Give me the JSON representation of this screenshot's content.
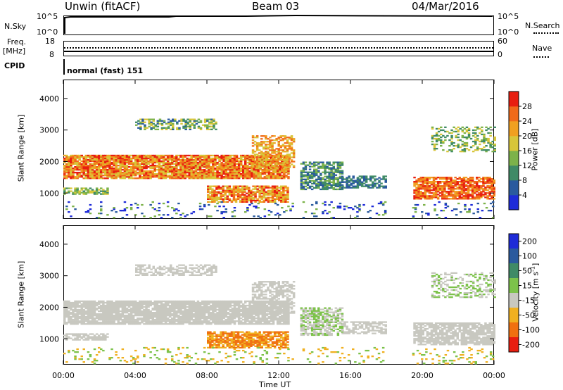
{
  "header": {
    "station": "Unwin (fitACF)",
    "beam": "Beam 03",
    "date": "04/Mar/2016"
  },
  "params": {
    "nsky_label": "N.Sky",
    "nsky_ticks": [
      "10^5",
      "10^0"
    ],
    "nsearch_label": "N.Search",
    "freq_label": "Freq.",
    "freq_unit": "[MHz]",
    "freq_ticks": [
      "18",
      "8"
    ],
    "nave_ticks": [
      "60",
      "0"
    ],
    "nave_label": "Nave",
    "cpid_label": "CPID",
    "cpid_value": "normal (fast) 151"
  },
  "chart_data": [
    {
      "type": "heatmap",
      "title": "",
      "ylabel": "Slant Range [km]",
      "xlabel": "",
      "ylim": [
        180,
        4600
      ],
      "y_ticks": [
        "1000",
        "2000",
        "3000",
        "4000"
      ],
      "colorbar_label": "Power [dB]",
      "colorbar_ticks": [
        "4",
        "8",
        "12",
        "16",
        "20",
        "24",
        "28"
      ],
      "colors": [
        "#1e2bd8",
        "#2a5a9e",
        "#3f8a66",
        "#7cb24a",
        "#d8c63a",
        "#f0a020",
        "#f06a1a",
        "#e81e10"
      ]
    },
    {
      "type": "heatmap",
      "title": "",
      "ylabel": "Slant Range [km]",
      "xlabel": "Time UT",
      "ylim": [
        180,
        4600
      ],
      "y_ticks": [
        "1000",
        "2000",
        "3000",
        "4000"
      ],
      "x_ticks": [
        "00:00",
        "04:00",
        "08:00",
        "12:00",
        "16:00",
        "20:00",
        "00:00"
      ],
      "colorbar_label": "Velocity [m s",
      "colorbar_sup": "-1",
      "colorbar_ticks": [
        "200",
        "100",
        "50",
        "15",
        "-15",
        "-50",
        "-100",
        "-200"
      ],
      "colors": [
        "#1e2bd8",
        "#2a5a9e",
        "#3f8a66",
        "#7cc24a",
        "#c8c8c0",
        "#f0b020",
        "#f07010",
        "#e81e10"
      ]
    }
  ]
}
